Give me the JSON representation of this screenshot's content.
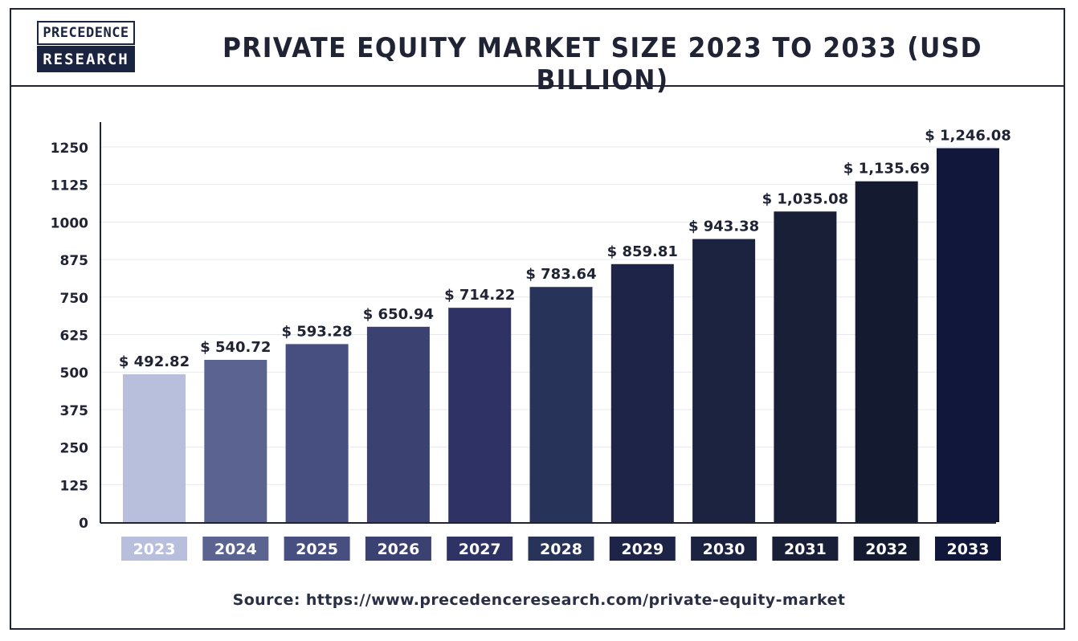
{
  "logo": {
    "line1": "PRECEDENCE",
    "line2": "RESEARCH"
  },
  "title": "PRIVATE EQUITY MARKET SIZE 2023 TO 2033 (USD BILLION)",
  "source": "Source: https://www.precedenceresearch.com/private-equity-market",
  "chart_data": {
    "type": "bar",
    "categories": [
      "2023",
      "2024",
      "2025",
      "2026",
      "2027",
      "2028",
      "2029",
      "2030",
      "2031",
      "2032",
      "2033"
    ],
    "values": [
      492.82,
      540.72,
      593.28,
      650.94,
      714.22,
      783.64,
      859.81,
      943.38,
      1035.08,
      1135.69,
      1246.08
    ],
    "value_labels": [
      "$ 492.82",
      "$ 540.72",
      "$ 593.28",
      "$ 650.94",
      "$ 714.22",
      "$ 783.64",
      "$ 859.81",
      "$ 943.38",
      "$ 1,035.08",
      "$ 1,135.69",
      "$ 1,246.08"
    ],
    "colors": [
      "#b8bfdd",
      "#5b6391",
      "#474e80",
      "#3b4272",
      "#2e3264",
      "#28335a",
      "#1d2448",
      "#1c2340",
      "#1a1f38",
      "#141a30",
      "#11173a"
    ],
    "yticks": [
      0,
      125,
      250,
      375,
      500,
      625,
      750,
      875,
      1000,
      1125,
      1250
    ],
    "ylim": [
      0,
      1250
    ],
    "grid": true,
    "legend": "none",
    "title": "PRIVATE EQUITY MARKET SIZE 2023 TO 2033 (USD BILLION)",
    "xlabel": "",
    "ylabel": ""
  }
}
